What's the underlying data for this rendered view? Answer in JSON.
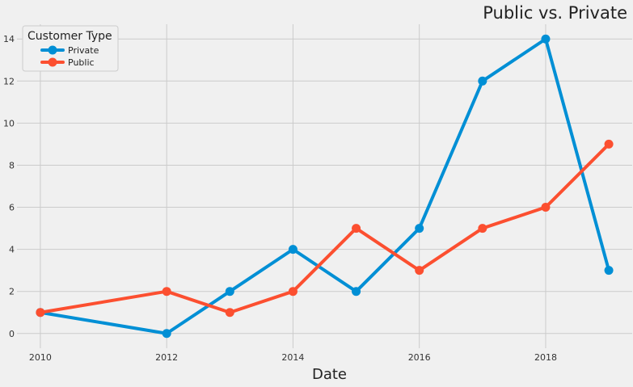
{
  "chart_data": {
    "type": "line",
    "title": "Public vs. Private",
    "xlabel": "Date",
    "ylabel": "",
    "xlim": [
      2009.63,
      2019.37
    ],
    "ylim": [
      -0.7,
      14.7
    ],
    "x_ticks": [
      2010,
      2012,
      2014,
      2016,
      2018
    ],
    "y_ticks": [
      0,
      2,
      4,
      6,
      8,
      10,
      12,
      14
    ],
    "grid": true,
    "legend": {
      "title": "Customer Type",
      "placement": "top-left"
    },
    "x": [
      2010,
      2012,
      2013,
      2014,
      2015,
      2016,
      2017,
      2018,
      2019
    ],
    "series": [
      {
        "name": "Private",
        "color": "#008fd5",
        "values": [
          1,
          0,
          2,
          4,
          2,
          5,
          12,
          14,
          3
        ]
      },
      {
        "name": "Public",
        "color": "#fc4f30",
        "values": [
          1,
          2,
          1,
          2,
          5,
          3,
          5,
          6,
          9
        ]
      }
    ]
  }
}
